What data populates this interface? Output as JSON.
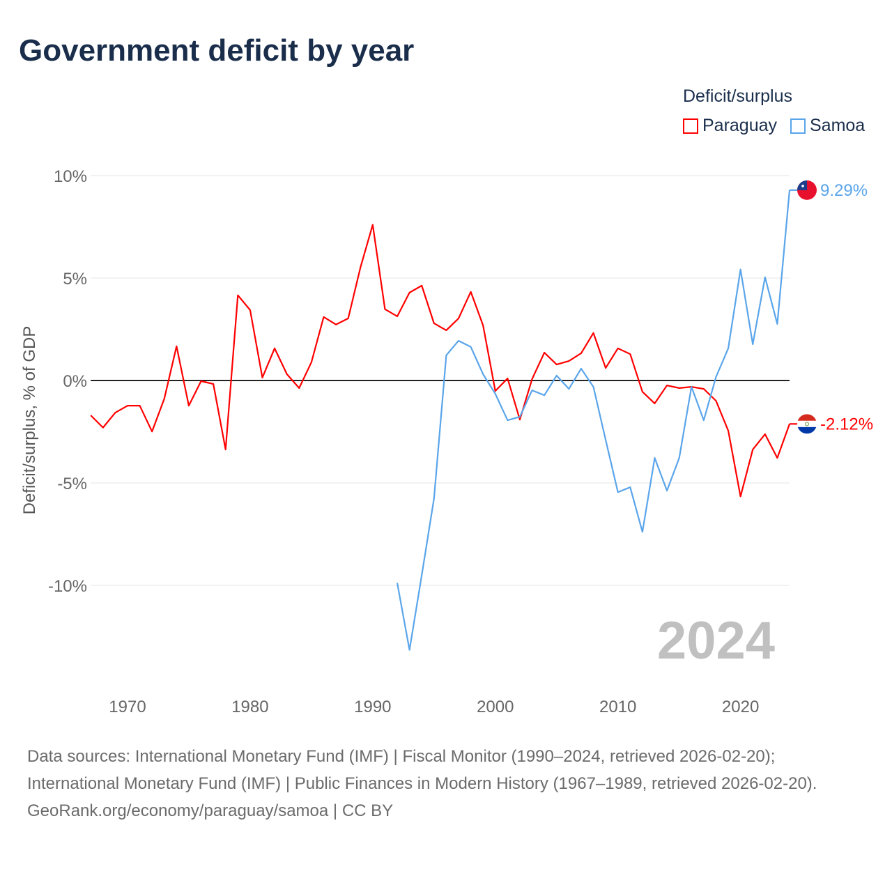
{
  "title": "Government deficit by year",
  "legend": {
    "title": "Deficit/surplus",
    "items": [
      {
        "name": "Paraguay",
        "color": "#ff0000"
      },
      {
        "name": "Samoa",
        "color": "#5aa5ea"
      }
    ]
  },
  "year_label": "2024",
  "footer": {
    "source_line": "Data sources: International Monetary Fund (IMF) | Fiscal Monitor (1990–2024, retrieved 2026-02-20); International Monetary Fund (IMF) | Public Finances in Modern History (1967–1989, retrieved 2026-02-20).",
    "credit": "GeoRank.org/economy/paraguay/samoa | CC BY"
  },
  "chart_data": {
    "type": "line",
    "title": "Government deficit by year",
    "xlabel": "",
    "ylabel": "Deficit/surplus, % of GDP",
    "xlim": [
      1967,
      2024
    ],
    "ylim": [
      -14.5,
      10
    ],
    "x_ticks": [
      1970,
      1980,
      1990,
      2000,
      2010,
      2020
    ],
    "y_ticks": [
      10,
      5,
      0,
      -5,
      -10
    ],
    "y_tick_labels": [
      "10%",
      "5%",
      "0%",
      "-5%",
      "-10%"
    ],
    "grid": true,
    "legend_position": "top-right",
    "series": [
      {
        "name": "Paraguay",
        "color": "#ff0000",
        "end_label": "-2.12%",
        "start_year": 1967,
        "values": [
          -1.7,
          -2.3,
          -1.57,
          -1.23,
          -1.23,
          -2.49,
          -0.89,
          1.67,
          -1.23,
          -0.03,
          -0.17,
          -3.37,
          4.16,
          3.44,
          0.14,
          1.57,
          0.31,
          -0.37,
          0.89,
          3.1,
          2.73,
          3.03,
          5.52,
          7.6,
          3.48,
          3.13,
          4.29,
          4.63,
          2.79,
          2.45,
          3.03,
          4.33,
          2.69,
          -0.51,
          0.1,
          -1.91,
          0.07,
          1.36,
          0.78,
          0.95,
          1.33,
          2.32,
          0.61,
          1.57,
          1.29,
          -0.55,
          -1.12,
          -0.24,
          -0.37,
          -0.31,
          -0.41,
          -0.99,
          -2.45,
          -5.66,
          -3.37,
          -2.62,
          -3.78,
          -2.12
        ]
      },
      {
        "name": "Samoa",
        "color": "#5aa5ea",
        "end_label": "9.29%",
        "start_year": 1992,
        "values": [
          -9.88,
          -13.15,
          -9.5,
          -5.76,
          1.23,
          1.94,
          1.64,
          0.31,
          -0.65,
          -1.94,
          -1.77,
          -0.48,
          -0.72,
          0.24,
          -0.41,
          0.58,
          -0.31,
          -2.9,
          -5.45,
          -5.21,
          -7.39,
          -3.78,
          -5.38,
          -3.78,
          -0.31,
          -1.94,
          0.17,
          1.57,
          5.42,
          1.77,
          5.04,
          2.76,
          9.29
        ]
      }
    ]
  }
}
